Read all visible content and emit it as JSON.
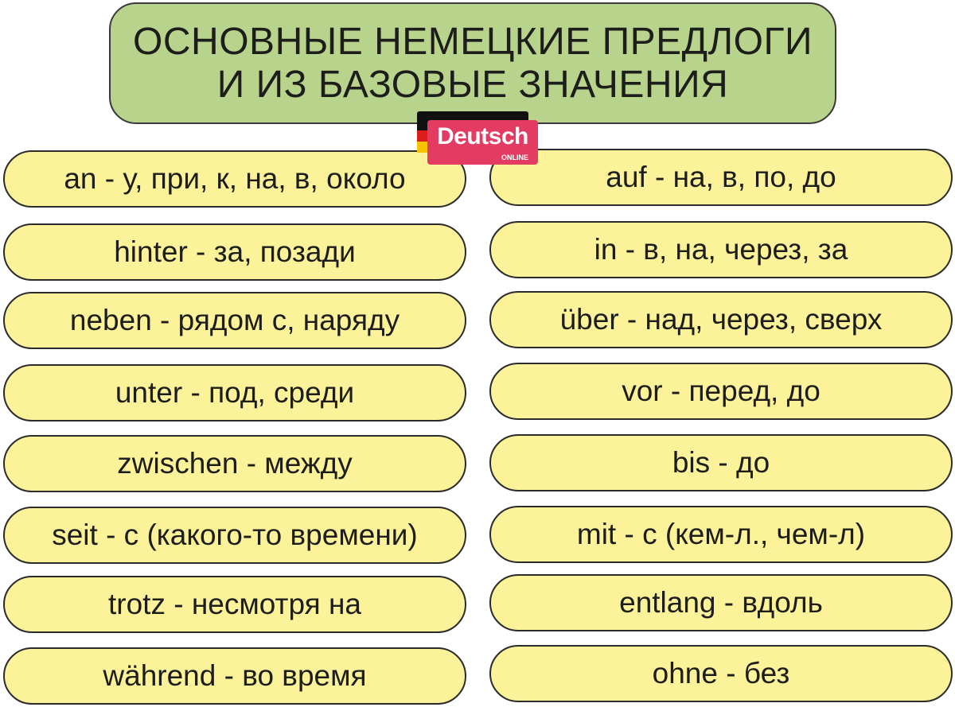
{
  "title": {
    "line1": "ОСНОВНЫЕ НЕМЕЦКИЕ ПРЕДЛОГИ",
    "line2": "И ИЗ БАЗОВЫЕ ЗНАЧЕНИЯ"
  },
  "logo": {
    "word": "Deutsch",
    "sub": "ONLINE"
  },
  "colors": {
    "title_bg": "#b8d48c",
    "pill_bg": "#fcf29a",
    "logo": "#e43b62"
  },
  "left": [
    "an - у, при, к, на, в, около",
    "hinter - за, позади",
    "neben - рядом с, наряду",
    "unter - под, среди",
    "zwischen - между",
    "seit - с (какого-то времени)",
    "trotz - несмотря на",
    "während - во время"
  ],
  "right": [
    "auf - на, в, по, до",
    "in - в, на, через, за",
    "über - над, через, сверх",
    "vor - перед, до",
    "bis - до",
    "mit - с (кем-л., чем-л)",
    "entlang - вдоль",
    "ohne - без"
  ]
}
